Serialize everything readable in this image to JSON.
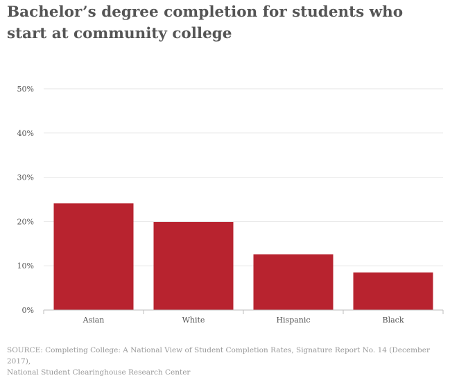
{
  "title": "Bachelor’s degree completion for students who start at community college",
  "source": {
    "line1": "SOURCE: Completing College: A National View of Student Completion Rates, Signature Report No. 14 (December 2017),",
    "line2": "National Student Clearinghouse Research Center"
  },
  "colors": {
    "bar": "#b8232f",
    "grid": "#e6e6e6",
    "axis": "#bdbdbd",
    "text": "#555555",
    "source": "#999999"
  },
  "chart_data": {
    "type": "bar",
    "title": "Bachelor’s degree completion for students who start at community college",
    "categories": [
      "Asian",
      "White",
      "Hispanic",
      "Black"
    ],
    "values": [
      24.1,
      19.9,
      12.6,
      8.5
    ],
    "ylim": [
      0,
      50
    ],
    "yticks": [
      0,
      10,
      20,
      30,
      40,
      50
    ],
    "ytick_labels": [
      "0%",
      "10%",
      "20%",
      "30%",
      "40%",
      "50%"
    ],
    "xlabel": "",
    "ylabel": "",
    "grid": true,
    "legend": "none"
  }
}
